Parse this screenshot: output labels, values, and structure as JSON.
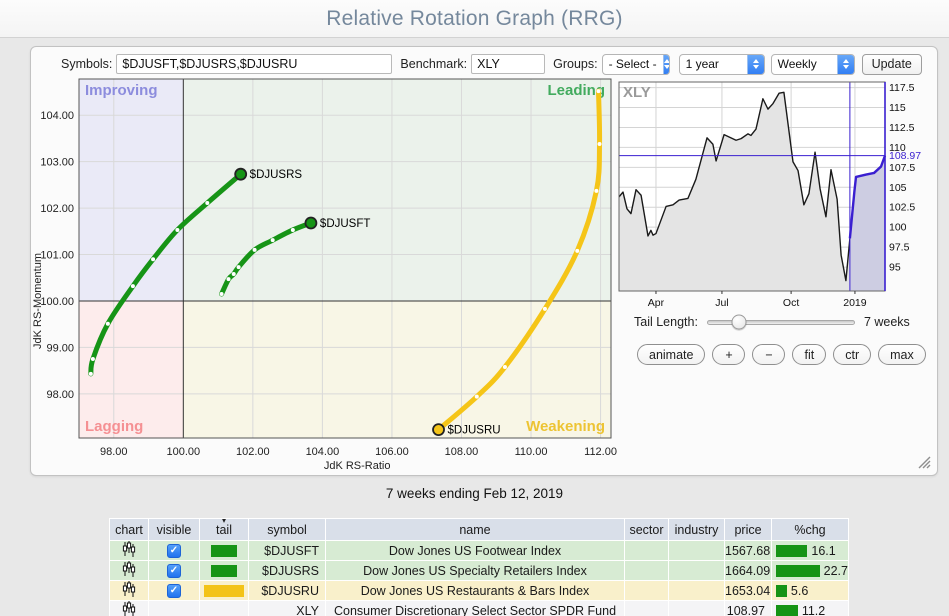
{
  "header": {
    "title": "Relative Rotation Graph (RRG)"
  },
  "toolbar": {
    "symbols_label": "Symbols:",
    "symbols_value": "$DJUSFT,$DJUSRS,$DJUSRU",
    "benchmark_label": "Benchmark:",
    "benchmark_value": "XLY",
    "groups_label": "Groups:",
    "groups_value": "- Select -",
    "period_value": "1 year",
    "frequency_value": "Weekly",
    "update_label": "Update"
  },
  "chart_data": [
    {
      "type": "scatter",
      "title": "RRG quadrant chart",
      "xlabel": "JdK RS-Ratio",
      "ylabel": "JdK RS-Momentum",
      "x_ticks": [
        98,
        100,
        102,
        104,
        106,
        108,
        110,
        112
      ],
      "y_ticks": [
        98,
        99,
        100,
        101,
        102,
        103,
        104
      ],
      "x_range": [
        97.0,
        112.3
      ],
      "y_range": [
        97.05,
        104.78
      ],
      "center": [
        100,
        100
      ],
      "quadrants": [
        {
          "key": "improving",
          "label": "Improving",
          "color": "#8c8cdd",
          "bg": "#eaeaf7"
        },
        {
          "key": "leading",
          "label": "Leading",
          "color": "#42ab5e",
          "bg": "#ebf2eb"
        },
        {
          "key": "lagging",
          "label": "Lagging",
          "color": "#f59093",
          "bg": "#fdecec"
        },
        {
          "key": "weakening",
          "label": "Weakening",
          "color": "#edc433",
          "bg": "#f8f6e6"
        }
      ],
      "series": [
        {
          "name": "$DJUSRS",
          "color": "#169416",
          "points": [
            [
              97.34,
              98.43
            ],
            [
              97.4,
              98.75
            ],
            [
              97.83,
              99.51
            ],
            [
              98.55,
              100.32
            ],
            [
              99.13,
              100.9
            ],
            [
              99.83,
              101.53
            ],
            [
              100.69,
              102.11
            ],
            [
              101.65,
              102.73
            ]
          ]
        },
        {
          "name": "$DJUSFT",
          "color": "#169416",
          "points": [
            [
              101.1,
              100.15
            ],
            [
              101.3,
              100.47
            ],
            [
              101.45,
              100.58
            ],
            [
              101.59,
              100.73
            ],
            [
              102.05,
              101.1
            ],
            [
              102.57,
              101.31
            ],
            [
              103.15,
              101.53
            ],
            [
              103.67,
              101.68
            ]
          ]
        },
        {
          "name": "$DJUSRU",
          "color": "#f5c518",
          "points": [
            [
              111.94,
              104.52
            ],
            [
              111.97,
              103.38
            ],
            [
              111.88,
              102.37
            ],
            [
              111.33,
              101.08
            ],
            [
              110.4,
              99.83
            ],
            [
              109.25,
              98.58
            ],
            [
              108.44,
              97.94
            ],
            [
              107.34,
              97.23
            ]
          ]
        }
      ]
    },
    {
      "type": "area",
      "title": "XLY",
      "y_ticks": [
        117.5,
        115,
        112.5,
        110,
        107.5,
        105,
        102.5,
        100,
        97.5,
        95
      ],
      "y_range": [
        92,
        118.2
      ],
      "last_price": 108.97,
      "price_label": "108.97",
      "accent_color": "#3a1fd0",
      "x_labels": [
        {
          "label": "Apr",
          "pos": 0.139
        },
        {
          "label": "Jul",
          "pos": 0.387
        },
        {
          "label": "Oct",
          "pos": 0.647
        },
        {
          "label": "2019",
          "pos": 0.887
        }
      ],
      "highlight_start": 0.868,
      "main_series": [
        [
          0,
          103.8
        ],
        [
          0.015,
          104.4
        ],
        [
          0.03,
          102.3
        ],
        [
          0.045,
          101.7
        ],
        [
          0.064,
          104.7
        ],
        [
          0.083,
          104.0
        ],
        [
          0.109,
          98.9
        ],
        [
          0.12,
          99.6
        ],
        [
          0.128,
          99.0
        ],
        [
          0.139,
          99.2
        ],
        [
          0.177,
          102.6
        ],
        [
          0.203,
          102.8
        ],
        [
          0.226,
          103.4
        ],
        [
          0.259,
          103.6
        ],
        [
          0.289,
          106.0
        ],
        [
          0.331,
          111.2
        ],
        [
          0.353,
          110.4
        ],
        [
          0.365,
          108.3
        ],
        [
          0.395,
          111.6
        ],
        [
          0.421,
          111.2
        ],
        [
          0.44,
          110.9
        ],
        [
          0.459,
          111.1
        ],
        [
          0.485,
          111.7
        ],
        [
          0.496,
          111.5
        ],
        [
          0.515,
          112.3
        ],
        [
          0.541,
          116.1
        ],
        [
          0.56,
          114.8
        ],
        [
          0.579,
          115.5
        ],
        [
          0.602,
          116.8
        ],
        [
          0.62,
          116.9
        ],
        [
          0.654,
          108.2
        ],
        [
          0.673,
          107.1
        ],
        [
          0.695,
          102.8
        ],
        [
          0.714,
          104.2
        ],
        [
          0.737,
          109.4
        ],
        [
          0.756,
          104.8
        ],
        [
          0.778,
          101.3
        ],
        [
          0.797,
          107.2
        ],
        [
          0.82,
          103.5
        ],
        [
          0.835,
          96.5
        ],
        [
          0.853,
          93.3
        ],
        [
          0.868,
          98.6
        ]
      ],
      "highlight_series": [
        [
          0.868,
          98.6
        ],
        [
          0.885,
          104.5
        ],
        [
          0.891,
          106.3
        ],
        [
          0.929,
          106.6
        ],
        [
          0.959,
          106.8
        ],
        [
          0.985,
          107.6
        ],
        [
          1,
          108.97
        ]
      ]
    }
  ],
  "controls": {
    "tail_label": "Tail Length:",
    "tail_value": "7 weeks",
    "slider_pos": 0.21,
    "buttons": [
      {
        "id": "animate-button",
        "label": "animate"
      },
      {
        "id": "zoom-in-button",
        "label": "+"
      },
      {
        "id": "zoom-out-button",
        "label": "−"
      },
      {
        "id": "fit-button",
        "label": "fit"
      },
      {
        "id": "center-button",
        "label": "ctr"
      },
      {
        "id": "max-button",
        "label": "max"
      }
    ]
  },
  "caption": "7 weeks ending Feb 12, 2019",
  "table": {
    "columns": [
      "chart",
      "visible",
      "tail",
      "symbol",
      "name",
      "sector",
      "industry",
      "price",
      "%chg"
    ],
    "sorted_column": "tail",
    "rows": [
      {
        "symbol": "$DJUSFT",
        "name": "Dow Jones US Footwear Index",
        "sector": "",
        "industry": "",
        "price": "1567.68",
        "pct_chg": 16.1,
        "visible": true,
        "tail_color": "#169416",
        "tail_swatch_width": 26,
        "row_bg": "#d7ebd3"
      },
      {
        "symbol": "$DJUSRS",
        "name": "Dow Jones US Specialty Retailers Index",
        "sector": "",
        "industry": "",
        "price": "1664.09",
        "pct_chg": 22.7,
        "visible": true,
        "tail_color": "#169416",
        "tail_swatch_width": 26,
        "row_bg": "#d7ebd3"
      },
      {
        "symbol": "$DJUSRU",
        "name": "Dow Jones US Restaurants & Bars Index",
        "sector": "",
        "industry": "",
        "price": "1653.04",
        "pct_chg": 5.6,
        "visible": true,
        "tail_color": "#f3c317",
        "tail_swatch_width": 40,
        "row_bg": "#f9f0cb"
      },
      {
        "symbol": "XLY",
        "name": "Consumer Discretionary Select Sector SPDR Fund",
        "sector": "",
        "industry": "",
        "price": "108.97",
        "pct_chg": 11.2,
        "visible": false,
        "tail_color": "",
        "tail_swatch_width": 0,
        "row_bg": "#f4f4f6"
      }
    ]
  }
}
